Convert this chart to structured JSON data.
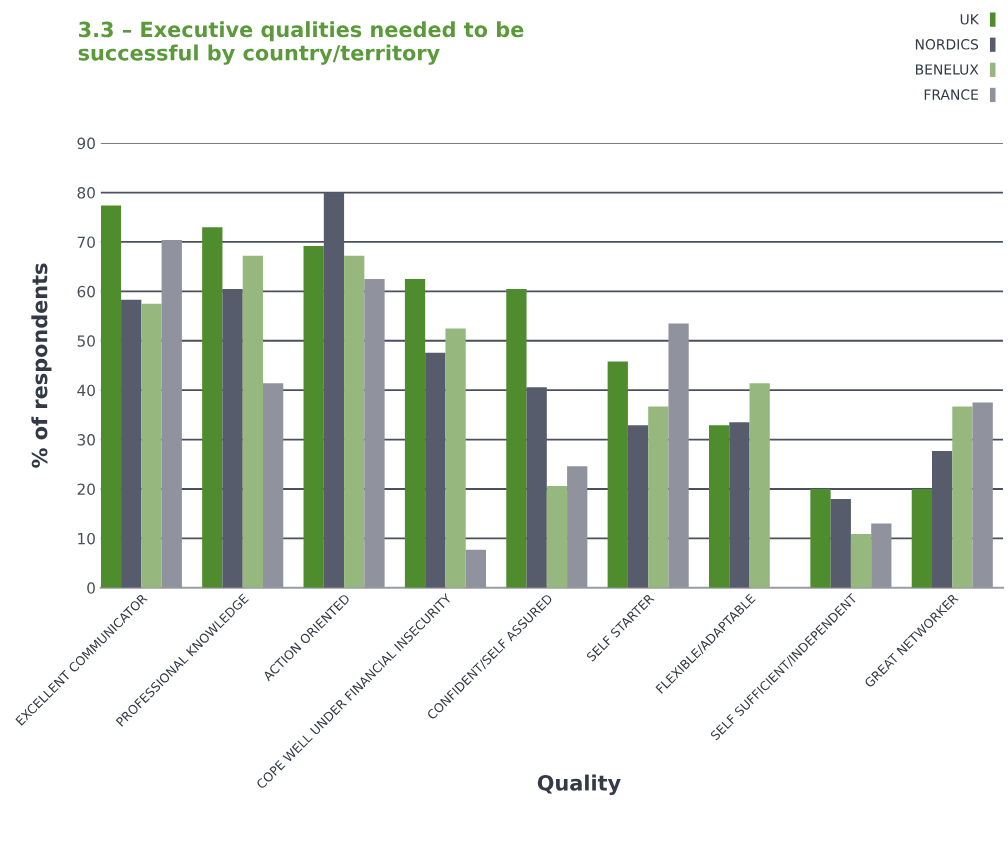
{
  "chart_data": {
    "type": "bar",
    "title": "3.3 – Executive qualities needed to be\nsuccessful by country/territory",
    "xlabel": "Quality",
    "ylabel": "% of respondents",
    "categories": [
      "EXCELLENT COMMUNICATOR",
      "PROFESSIONAL KNOWLEDGE",
      "ACTION ORIENTED",
      "COPE WELL UNDER FINANCIAL INSECURITY",
      "CONFIDENT/SELF ASSURED",
      "SELF STARTER",
      "FLEXIBLE/ADAPTABLE",
      "SELF SUFFICIENT/INDEPENDENT",
      "GREAT NETWORKER"
    ],
    "series": [
      {
        "name": "UK",
        "color": "#4e8c2e",
        "values": [
          77.4,
          73.0,
          69.2,
          62.5,
          60.5,
          45.8,
          32.9,
          20.0,
          20.0
        ]
      },
      {
        "name": "NORDICS",
        "color": "#565c6c",
        "values": [
          58.3,
          60.5,
          80.0,
          47.6,
          40.6,
          32.9,
          33.5,
          18.0,
          27.7
        ]
      },
      {
        "name": "BENELUX",
        "color": "#96b87e",
        "values": [
          57.5,
          67.2,
          67.2,
          52.5,
          20.6,
          36.7,
          41.4,
          10.9,
          36.7
        ]
      },
      {
        "name": "FRANCE",
        "color": "#90939d",
        "values": [
          70.4,
          41.4,
          62.5,
          7.7,
          24.6,
          53.5,
          null,
          13.0,
          37.5
        ]
      }
    ],
    "ylim": [
      0,
      90
    ],
    "yticks": [
      0,
      10,
      20,
      30,
      40,
      50,
      60,
      70,
      80,
      90
    ],
    "grid": "y",
    "legend": "top right"
  }
}
